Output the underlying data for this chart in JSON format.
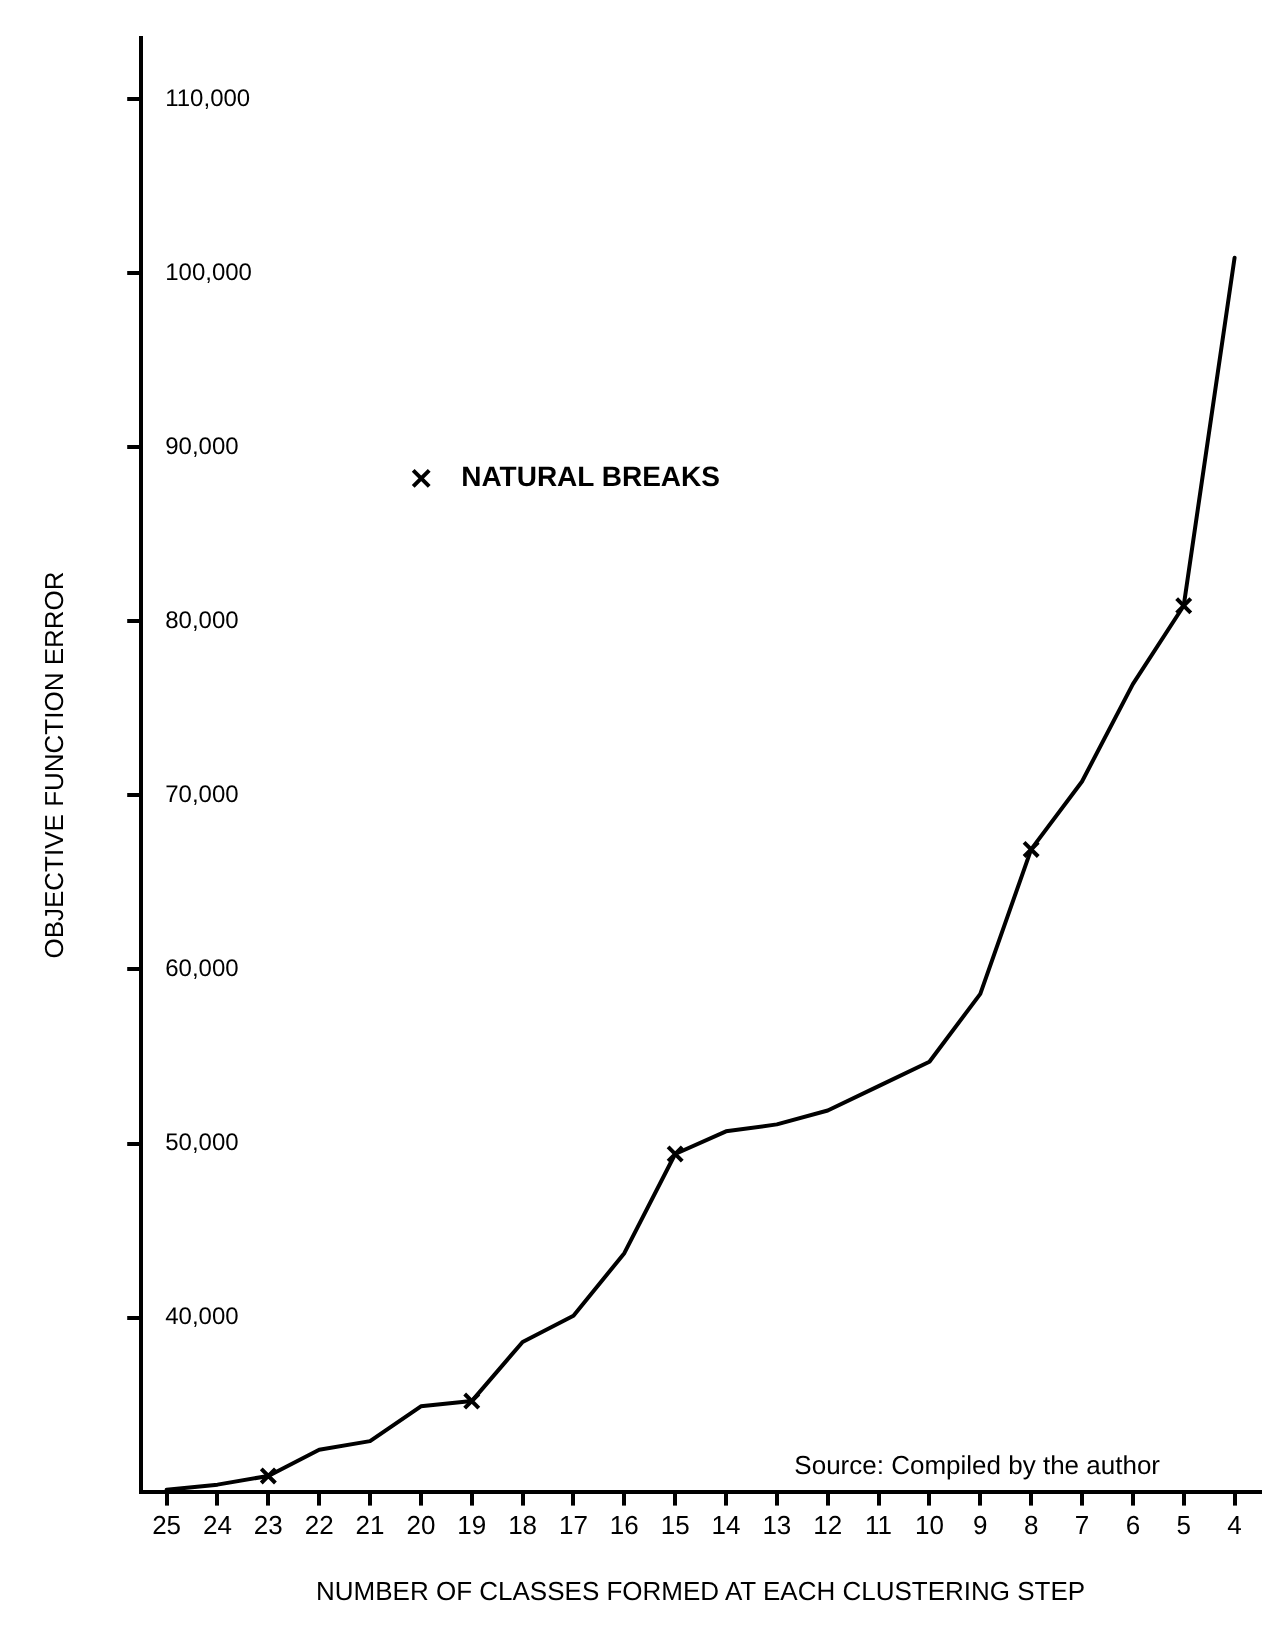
{
  "chart_data": {
    "type": "line",
    "xlabel": "NUMBER OF CLASSES FORMED AT EACH CLUSTERING STEP",
    "ylabel": "OBJECTIVE FUNCTION ERROR",
    "categories": [
      "25",
      "24",
      "23",
      "22",
      "21",
      "20",
      "19",
      "18",
      "17",
      "16",
      "15",
      "14",
      "13",
      "12",
      "11",
      "10",
      "9",
      "8",
      "7",
      "6",
      "5",
      "4"
    ],
    "series": [
      {
        "color": "#000000",
        "marker": "none",
        "values": [
          30100,
          30400,
          30900,
          32400,
          32900,
          34900,
          35200,
          38600,
          40100,
          43700,
          49400,
          50700,
          51100,
          51900,
          53300,
          54700,
          58600,
          66900,
          70800,
          76400,
          80900,
          100900
        ]
      },
      {
        "type": "scatter",
        "name": "NATURAL BREAKS",
        "color": "#000000",
        "marker": "cross",
        "x": [
          "23",
          "19",
          "15",
          "8",
          "5"
        ],
        "values": [
          30900,
          35200,
          49400,
          66900,
          80900
        ]
      }
    ],
    "ylim": [
      30000,
      113500
    ],
    "yticks": [
      {
        "value": 40000,
        "label": "40,000"
      },
      {
        "value": 50000,
        "label": "50,000"
      },
      {
        "value": 60000,
        "label": "60,000"
      },
      {
        "value": 70000,
        "label": "70,000"
      },
      {
        "value": 80000,
        "label": "80,000"
      },
      {
        "value": 90000,
        "label": "90,000"
      },
      {
        "value": 100000,
        "label": "100,000"
      },
      {
        "value": 110000,
        "label": "110,000"
      }
    ],
    "grid": false,
    "legend": "top left",
    "annotations": [
      "Source: Compiled by the author"
    ]
  }
}
